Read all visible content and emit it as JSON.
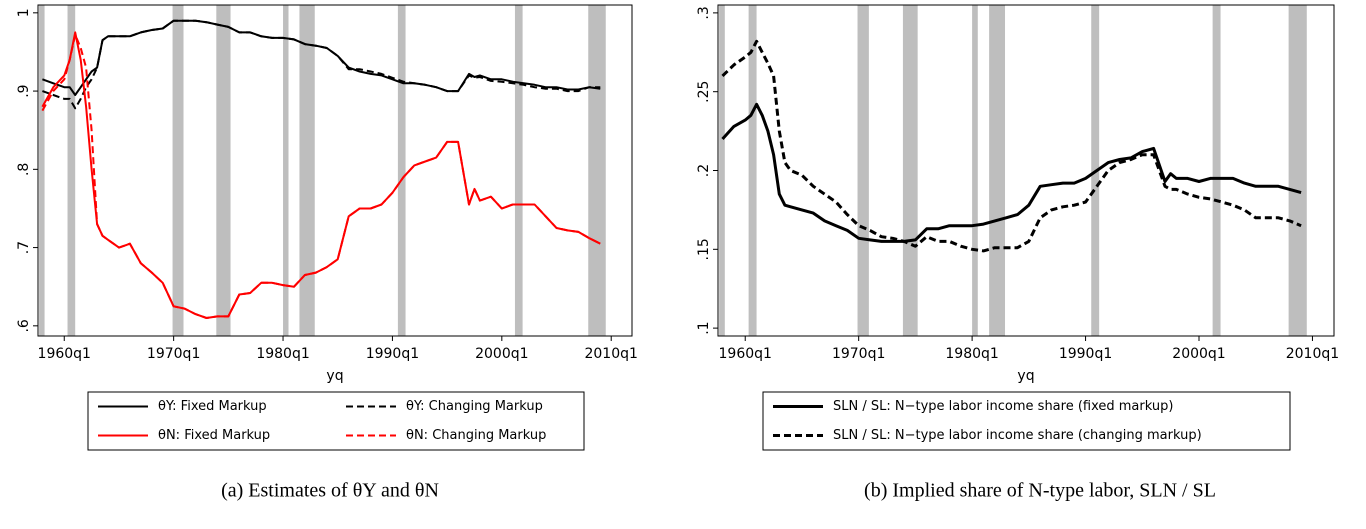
{
  "chart_data": [
    {
      "type": "line",
      "xlabel": "yq",
      "caption": "(a) Estimates of θY and θN",
      "legend_columns": 2,
      "xlim": [
        1957.6,
        2011.9
      ],
      "ylim": [
        0.587,
        1.01
      ],
      "xticks": [
        {
          "value": 1960,
          "label": "1960q1"
        },
        {
          "value": 1970,
          "label": "1970q1"
        },
        {
          "value": 1980,
          "label": "1980q1"
        },
        {
          "value": 1990,
          "label": "1990q1"
        },
        {
          "value": 2000,
          "label": "2000q1"
        },
        {
          "value": 2010,
          "label": "2010q1"
        }
      ],
      "yticks": [
        {
          "value": 0.6,
          "label": ".6"
        },
        {
          "value": 0.7,
          "label": ".7"
        },
        {
          "value": 0.8,
          "label": ".8"
        },
        {
          "value": 0.9,
          "label": ".9"
        },
        1
      ],
      "shaded": [
        [
          1957.7,
          1958.2
        ],
        [
          1960.3,
          1961.0
        ],
        [
          1969.9,
          1970.9
        ],
        [
          1973.9,
          1975.2
        ],
        [
          1980.0,
          1980.5
        ],
        [
          1981.5,
          1982.9
        ],
        [
          1990.5,
          1991.2
        ],
        [
          2001.2,
          2001.9
        ],
        [
          2007.9,
          2009.5
        ]
      ],
      "x": [
        1958,
        1959,
        1960,
        1960.5,
        1961,
        1961.5,
        1962,
        1962.5,
        1963,
        1963.5,
        1964,
        1965,
        1966,
        1967,
        1968,
        1969,
        1970,
        1971,
        1972,
        1973,
        1974,
        1975,
        1976,
        1977,
        1978,
        1979,
        1980,
        1981,
        1982,
        1983,
        1984,
        1985,
        1986,
        1987,
        1988,
        1989,
        1990,
        1991,
        1992,
        1993,
        1994,
        1995,
        1996,
        1997,
        1997.5,
        1998,
        1999,
        2000,
        2001,
        2002,
        2003,
        2004,
        2005,
        2006,
        2007,
        2008,
        2009
      ],
      "series": [
        {
          "name": "θY: Fixed Markup",
          "color": "#000000",
          "dash": false,
          "values": [
            0.915,
            0.91,
            0.905,
            0.905,
            0.895,
            0.905,
            0.915,
            0.925,
            0.93,
            0.965,
            0.97,
            0.97,
            0.97,
            0.975,
            0.978,
            0.98,
            0.99,
            0.99,
            0.99,
            0.988,
            0.985,
            0.982,
            0.975,
            0.975,
            0.97,
            0.968,
            0.968,
            0.966,
            0.96,
            0.958,
            0.955,
            0.945,
            0.93,
            0.925,
            0.922,
            0.92,
            0.915,
            0.91,
            0.91,
            0.908,
            0.905,
            0.9,
            0.9,
            0.922,
            0.918,
            0.92,
            0.915,
            0.915,
            0.912,
            0.91,
            0.908,
            0.905,
            0.905,
            0.902,
            0.902,
            0.905,
            0.903
          ]
        },
        {
          "name": "θY: Changing Markup",
          "color": "#000000",
          "dash": true,
          "values": [
            0.9,
            0.895,
            0.89,
            0.89,
            0.878,
            0.89,
            0.905,
            0.915,
            0.93,
            0.965,
            0.97,
            0.97,
            0.97,
            0.975,
            0.978,
            0.98,
            0.99,
            0.99,
            0.99,
            0.988,
            0.985,
            0.982,
            0.975,
            0.975,
            0.97,
            0.968,
            0.968,
            0.966,
            0.96,
            0.958,
            0.955,
            0.945,
            0.928,
            0.928,
            0.925,
            0.922,
            0.917,
            0.912,
            0.91,
            0.908,
            0.905,
            0.9,
            0.9,
            0.92,
            0.917,
            0.918,
            0.913,
            0.912,
            0.91,
            0.908,
            0.905,
            0.903,
            0.903,
            0.9,
            0.9,
            0.905,
            0.905
          ]
        },
        {
          "name": "θN: Fixed Markup",
          "color": "#ff0000",
          "dash": false,
          "values": [
            0.88,
            0.905,
            0.92,
            0.94,
            0.975,
            0.94,
            0.88,
            0.8,
            0.73,
            0.715,
            0.71,
            0.7,
            0.705,
            0.68,
            0.668,
            0.655,
            0.625,
            0.622,
            0.615,
            0.61,
            0.612,
            0.612,
            0.64,
            0.642,
            0.655,
            0.655,
            0.652,
            0.65,
            0.665,
            0.668,
            0.675,
            0.685,
            0.74,
            0.75,
            0.75,
            0.755,
            0.77,
            0.79,
            0.805,
            0.81,
            0.815,
            0.835,
            0.835,
            0.755,
            0.775,
            0.76,
            0.765,
            0.75,
            0.755,
            0.755,
            0.755,
            0.74,
            0.725,
            0.722,
            0.72,
            0.712,
            0.705
          ]
        },
        {
          "name": "θN: Changing Markup",
          "color": "#ff0000",
          "dash": true,
          "values": [
            0.875,
            0.9,
            0.915,
            0.94,
            0.972,
            0.955,
            0.93,
            0.85,
            0.73,
            0.715,
            0.71,
            0.7,
            0.705,
            0.68,
            0.668,
            0.655,
            0.625,
            0.622,
            0.615,
            0.61,
            0.612,
            0.612,
            0.64,
            0.642,
            0.655,
            0.655,
            0.652,
            0.65,
            0.665,
            0.668,
            0.675,
            0.685,
            0.74,
            0.75,
            0.75,
            0.755,
            0.77,
            0.79,
            0.805,
            0.81,
            0.815,
            0.835,
            0.835,
            0.755,
            0.775,
            0.76,
            0.765,
            0.75,
            0.755,
            0.755,
            0.755,
            0.74,
            0.725,
            0.722,
            0.72,
            0.712,
            0.705
          ]
        }
      ]
    },
    {
      "type": "line",
      "xlabel": "yq",
      "caption": "(b) Implied share of N-type labor, SLN / SL",
      "legend_columns": 1,
      "xlim": [
        1957.6,
        2011.9
      ],
      "ylim": [
        0.095,
        0.305
      ],
      "xticks": [
        {
          "value": 1960,
          "label": "1960q1"
        },
        {
          "value": 1970,
          "label": "1970q1"
        },
        {
          "value": 1980,
          "label": "1980q1"
        },
        {
          "value": 1990,
          "label": "1990q1"
        },
        {
          "value": 2000,
          "label": "2000q1"
        },
        {
          "value": 2010,
          "label": "2010q1"
        }
      ],
      "yticks": [
        {
          "value": 0.1,
          "label": ".1"
        },
        {
          "value": 0.15,
          "label": ".15"
        },
        {
          "value": 0.2,
          "label": ".2"
        },
        {
          "value": 0.25,
          "label": ".25"
        },
        {
          "value": 0.3,
          "label": ".3"
        }
      ],
      "shaded": [
        [
          1957.7,
          1958.2
        ],
        [
          1960.3,
          1961.0
        ],
        [
          1969.9,
          1970.9
        ],
        [
          1973.9,
          1975.2
        ],
        [
          1980.0,
          1980.5
        ],
        [
          1981.5,
          1982.9
        ],
        [
          1990.5,
          1991.2
        ],
        [
          2001.2,
          2001.9
        ],
        [
          2007.9,
          2009.5
        ]
      ],
      "x": [
        1958,
        1959,
        1960,
        1960.5,
        1961,
        1961.5,
        1962,
        1962.5,
        1963,
        1963.5,
        1964,
        1965,
        1966,
        1967,
        1968,
        1969,
        1970,
        1971,
        1972,
        1973,
        1974,
        1975,
        1976,
        1977,
        1978,
        1979,
        1980,
        1981,
        1982,
        1983,
        1984,
        1985,
        1986,
        1987,
        1988,
        1989,
        1990,
        1991,
        1992,
        1993,
        1994,
        1995,
        1996,
        1997,
        1997.5,
        1998,
        1999,
        2000,
        2001,
        2002,
        2003,
        2004,
        2005,
        2006,
        2007,
        2008,
        2009
      ],
      "series": [
        {
          "name": "SLN / SL: N−type labor income share (fixed markup)",
          "color": "#000000",
          "dash": false,
          "values": [
            0.22,
            0.228,
            0.232,
            0.235,
            0.242,
            0.235,
            0.225,
            0.21,
            0.185,
            0.178,
            0.177,
            0.175,
            0.173,
            0.168,
            0.165,
            0.162,
            0.157,
            0.156,
            0.155,
            0.155,
            0.155,
            0.156,
            0.163,
            0.163,
            0.165,
            0.165,
            0.165,
            0.166,
            0.168,
            0.17,
            0.172,
            0.178,
            0.19,
            0.191,
            0.192,
            0.192,
            0.195,
            0.2,
            0.205,
            0.207,
            0.208,
            0.212,
            0.214,
            0.193,
            0.198,
            0.195,
            0.195,
            0.193,
            0.195,
            0.195,
            0.195,
            0.192,
            0.19,
            0.19,
            0.19,
            0.188,
            0.186
          ]
        },
        {
          "name": "SLN / SL: N−type labor income share (changing markup)",
          "color": "#000000",
          "dash": true,
          "values": [
            0.26,
            0.267,
            0.272,
            0.275,
            0.282,
            0.275,
            0.268,
            0.26,
            0.225,
            0.205,
            0.2,
            0.197,
            0.19,
            0.185,
            0.18,
            0.172,
            0.165,
            0.162,
            0.158,
            0.157,
            0.155,
            0.152,
            0.158,
            0.155,
            0.155,
            0.152,
            0.15,
            0.149,
            0.151,
            0.151,
            0.151,
            0.155,
            0.17,
            0.175,
            0.177,
            0.178,
            0.18,
            0.19,
            0.2,
            0.205,
            0.207,
            0.21,
            0.21,
            0.19,
            0.188,
            0.188,
            0.185,
            0.183,
            0.182,
            0.18,
            0.178,
            0.175,
            0.17,
            0.17,
            0.17,
            0.168,
            0.165
          ]
        }
      ]
    }
  ]
}
